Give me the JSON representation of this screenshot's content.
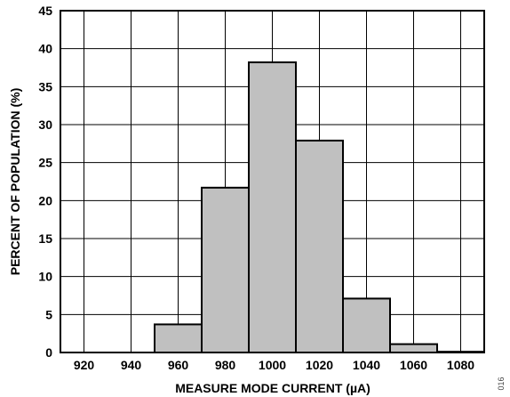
{
  "chart_data": {
    "type": "bar",
    "xlabel": "MEASURE MODE CURRENT (µA)",
    "ylabel": "PERCENT OF POPULATION (%)",
    "x_ticks": [
      "920",
      "940",
      "960",
      "980",
      "1000",
      "1020",
      "1040",
      "1060",
      "1080"
    ],
    "x_range": [
      910,
      1090
    ],
    "ylim": [
      0,
      45
    ],
    "y_ticks": [
      0,
      5,
      10,
      15,
      20,
      25,
      30,
      35,
      40,
      45
    ],
    "grid": true,
    "bins": [
      {
        "from": 950,
        "to": 970,
        "value": 3.7
      },
      {
        "from": 970,
        "to": 990,
        "value": 21.7
      },
      {
        "from": 990,
        "to": 1010,
        "value": 38.2
      },
      {
        "from": 1010,
        "to": 1030,
        "value": 27.9
      },
      {
        "from": 1030,
        "to": 1050,
        "value": 7.1
      },
      {
        "from": 1050,
        "to": 1070,
        "value": 1.1
      },
      {
        "from": 1070,
        "to": 1090,
        "value": 0.1
      }
    ],
    "bar_fill": "#c0c0c0",
    "bar_stroke": "#000000"
  },
  "figure_id": "016"
}
